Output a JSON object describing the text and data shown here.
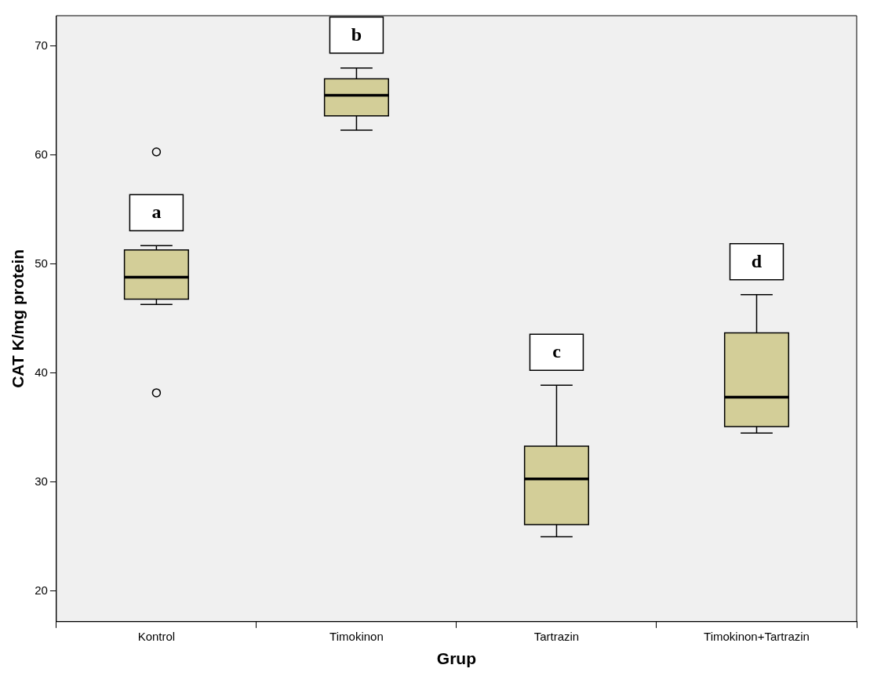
{
  "chart_data": {
    "type": "box",
    "xlabel": "Grup",
    "ylabel": "CAT K/mg protein",
    "categories": [
      "Kontrol",
      "Timokinon",
      "Tartrazin",
      "Timokinon+Tartrazin"
    ],
    "color": "#d3ce98",
    "boxes": [
      {
        "low": 46.3,
        "q1": 46.8,
        "median": 48.8,
        "q3": 51.3,
        "high": 51.7,
        "outliers": [
          60.3,
          38.2
        ]
      },
      {
        "low": 62.3,
        "q1": 63.6,
        "median": 65.5,
        "q3": 67.0,
        "high": 68.0
      },
      {
        "low": 25.0,
        "q1": 26.1,
        "median": 30.3,
        "q3": 33.3,
        "high": 38.9
      },
      {
        "low": 34.5,
        "q1": 35.1,
        "median": 37.8,
        "q3": 43.7,
        "high": 47.2
      }
    ],
    "ylim": [
      17.2,
      72.8
    ],
    "yticks": [
      20,
      30,
      40,
      50,
      60,
      70
    ],
    "grid": false,
    "legend": false,
    "annotations": [
      "a",
      "b",
      "c",
      "d"
    ]
  }
}
